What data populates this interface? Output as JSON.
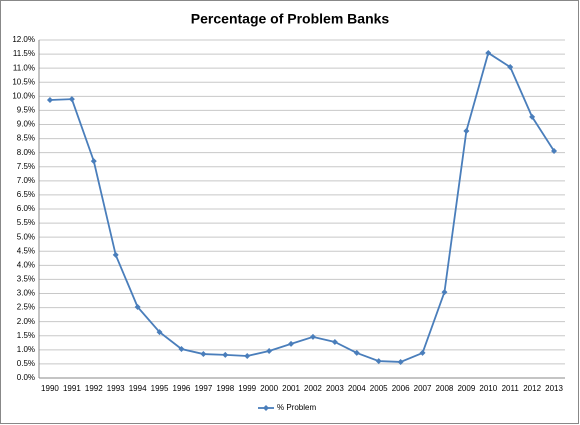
{
  "chart_data": {
    "type": "line",
    "title": "Percentage of Problem Banks",
    "categories": [
      "1990",
      "1991",
      "1992",
      "1993",
      "1994",
      "1995",
      "1996",
      "1997",
      "1998",
      "1999",
      "2000",
      "2001",
      "2002",
      "2003",
      "2004",
      "2005",
      "2006",
      "2007",
      "2008",
      "2009",
      "2010",
      "2011",
      "2012",
      "2013"
    ],
    "series": [
      {
        "name": "% Problem",
        "color": "#4a7ebb",
        "values": [
          9.87,
          9.9,
          7.7,
          4.37,
          2.52,
          1.63,
          1.03,
          0.85,
          0.82,
          0.78,
          0.96,
          1.21,
          1.46,
          1.28,
          0.89,
          0.6,
          0.57,
          0.89,
          3.05,
          8.77,
          11.54,
          11.04,
          9.27,
          8.06
        ]
      }
    ],
    "ylim": [
      0,
      12
    ],
    "yticks": [
      {
        "value": 0,
        "label": "0.0%"
      },
      {
        "value": 0.5,
        "label": "0.5%"
      },
      {
        "value": 1,
        "label": "1.0%"
      },
      {
        "value": 1.5,
        "label": "1.5%"
      },
      {
        "value": 2,
        "label": "2.0%"
      },
      {
        "value": 2.5,
        "label": "2.5%"
      },
      {
        "value": 3,
        "label": "3.0%"
      },
      {
        "value": 3.5,
        "label": "3.5%"
      },
      {
        "value": 4,
        "label": "4.0%"
      },
      {
        "value": 4.5,
        "label": "4.5%"
      },
      {
        "value": 5,
        "label": "5.0%"
      },
      {
        "value": 5.5,
        "label": "5.5%"
      },
      {
        "value": 6,
        "label": "6.0%"
      },
      {
        "value": 6.5,
        "label": "6.5%"
      },
      {
        "value": 7,
        "label": "7.0%"
      },
      {
        "value": 7.5,
        "label": "7.5%"
      },
      {
        "value": 8,
        "label": "8.0%"
      },
      {
        "value": 8.5,
        "label": "8.5%"
      },
      {
        "value": 9,
        "label": "9.0%"
      },
      {
        "value": 9.5,
        "label": "9.5%"
      },
      {
        "value": 10,
        "label": "10.0%"
      },
      {
        "value": 10.5,
        "label": "10.5%"
      },
      {
        "value": 11,
        "label": "11.0%"
      },
      {
        "value": 11.5,
        "label": "11.5%"
      },
      {
        "value": 12,
        "label": "12.0%"
      }
    ],
    "grid": true,
    "legend": "bottom"
  }
}
